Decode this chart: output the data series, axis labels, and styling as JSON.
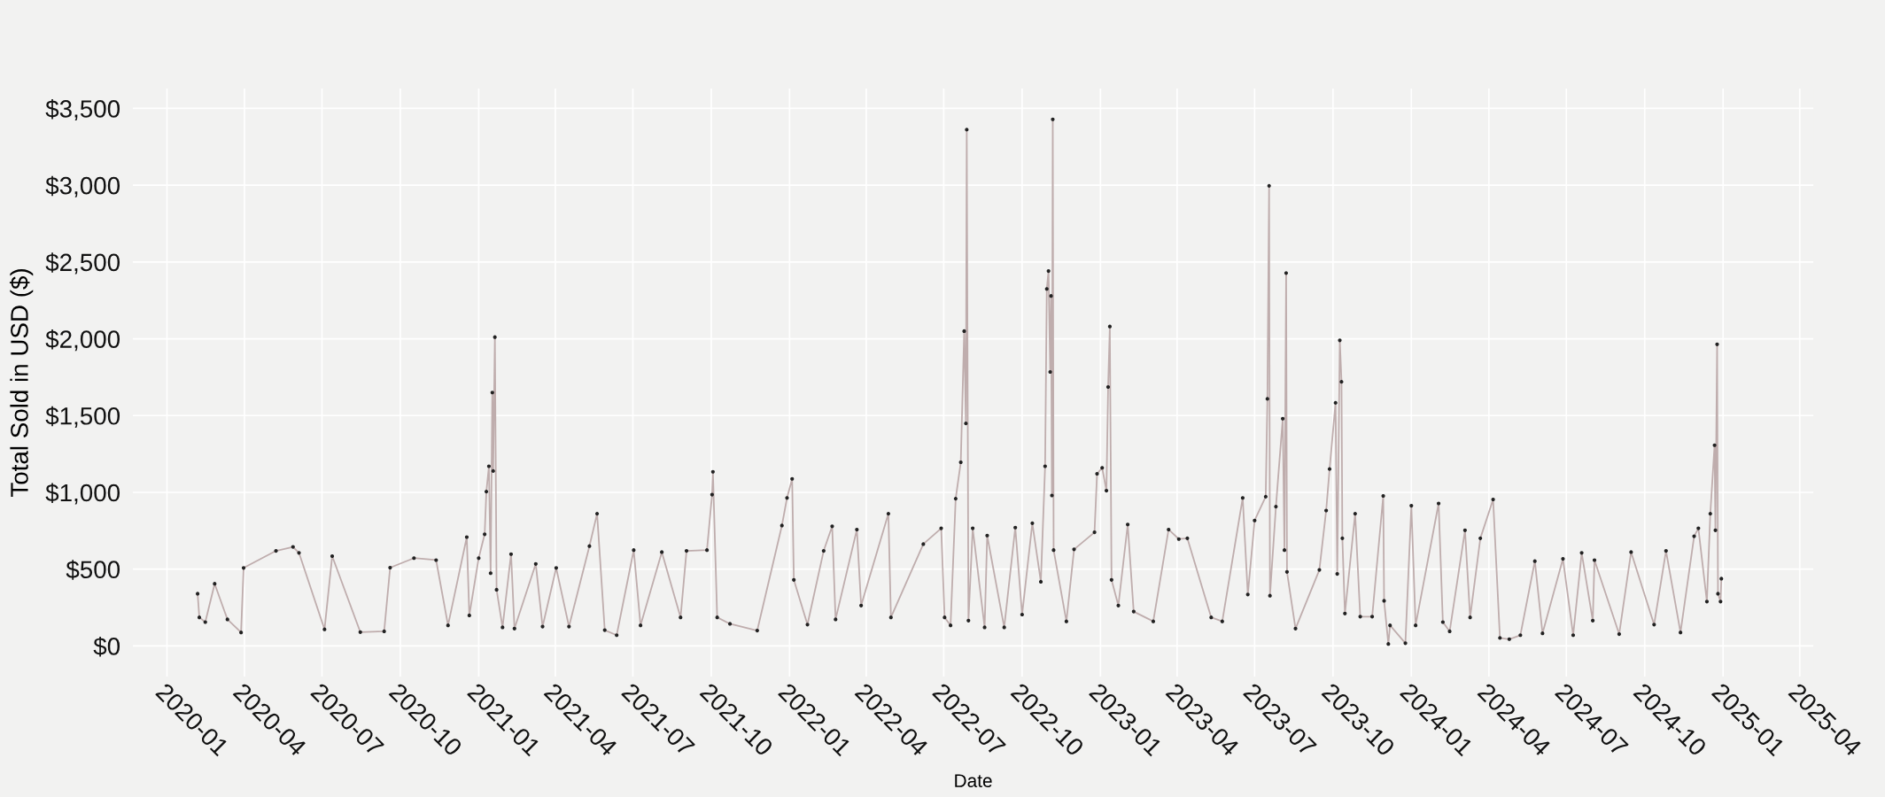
{
  "chart_data": {
    "type": "line",
    "xlabel": "Date",
    "ylabel": "Total Sold in USD ($)",
    "x": [
      "2020-02-06",
      "2020-02-08",
      "2020-02-15",
      "2020-02-26",
      "2020-03-12",
      "2020-03-28",
      "2020-03-31",
      "2020-05-08",
      "2020-05-28",
      "2020-06-04",
      "2020-07-04",
      "2020-07-13",
      "2020-08-15",
      "2020-09-12",
      "2020-09-19",
      "2020-10-17",
      "2020-11-12",
      "2020-11-26",
      "2020-12-18",
      "2020-12-21",
      "2021-01-01",
      "2021-01-08",
      "2021-01-10",
      "2021-01-13",
      "2021-01-15",
      "2021-01-17",
      "2021-01-18",
      "2021-01-20",
      "2021-01-22",
      "2021-01-29",
      "2021-02-08",
      "2021-02-12",
      "2021-03-09",
      "2021-03-17",
      "2021-04-02",
      "2021-04-17",
      "2021-05-11",
      "2021-05-20",
      "2021-05-29",
      "2021-06-12",
      "2021-07-02",
      "2021-07-10",
      "2021-08-04",
      "2021-08-26",
      "2021-09-02",
      "2021-09-26",
      "2021-10-02",
      "2021-10-03",
      "2021-10-08",
      "2021-10-23",
      "2021-11-24",
      "2021-12-23",
      "2021-12-29",
      "2022-01-04",
      "2022-01-06",
      "2022-01-22",
      "2022-02-10",
      "2022-02-20",
      "2022-02-24",
      "2022-03-21",
      "2022-03-26",
      "2022-04-27",
      "2022-04-30",
      "2022-06-07",
      "2022-06-28",
      "2022-07-02",
      "2022-07-09",
      "2022-07-15",
      "2022-07-21",
      "2022-07-25",
      "2022-07-27",
      "2022-07-28",
      "2022-07-30",
      "2022-08-04",
      "2022-08-18",
      "2022-08-21",
      "2022-09-10",
      "2022-09-23",
      "2022-10-01",
      "2022-10-13",
      "2022-10-23",
      "2022-10-28",
      "2022-10-30",
      "2022-11-01",
      "2022-11-03",
      "2022-11-04",
      "2022-11-05",
      "2022-11-06",
      "2022-11-07",
      "2022-11-22",
      "2022-12-01",
      "2022-12-25",
      "2022-12-28",
      "2023-01-03",
      "2023-01-08",
      "2023-01-10",
      "2023-01-12",
      "2023-01-14",
      "2023-01-22",
      "2023-02-02",
      "2023-02-09",
      "2023-03-04",
      "2023-03-22",
      "2023-04-03",
      "2023-04-13",
      "2023-05-11",
      "2023-05-24",
      "2023-06-17",
      "2023-06-23",
      "2023-07-01",
      "2023-07-14",
      "2023-07-16",
      "2023-07-18",
      "2023-07-19",
      "2023-07-26",
      "2023-08-03",
      "2023-08-05",
      "2023-08-07",
      "2023-08-08",
      "2023-08-18",
      "2023-09-15",
      "2023-09-23",
      "2023-09-27",
      "2023-10-04",
      "2023-10-06",
      "2023-10-09",
      "2023-10-11",
      "2023-10-12",
      "2023-10-15",
      "2023-10-27",
      "2023-11-02",
      "2023-11-16",
      "2023-11-29",
      "2023-11-30",
      "2023-12-05",
      "2023-12-07",
      "2023-12-25",
      "2024-01-01",
      "2024-01-06",
      "2024-02-02",
      "2024-02-07",
      "2024-02-15",
      "2024-03-04",
      "2024-03-10",
      "2024-03-22",
      "2024-04-06",
      "2024-04-14",
      "2024-04-25",
      "2024-05-08",
      "2024-05-25",
      "2024-06-03",
      "2024-06-27",
      "2024-07-09",
      "2024-07-19",
      "2024-08-01",
      "2024-08-03",
      "2024-09-01",
      "2024-09-15",
      "2024-10-12",
      "2024-10-26",
      "2024-11-12",
      "2024-11-28",
      "2024-12-03",
      "2024-12-13",
      "2024-12-17",
      "2024-12-22",
      "2024-12-23",
      "2024-12-25",
      "2024-12-26",
      "2024-12-29",
      "2024-12-30"
    ],
    "series": [
      {
        "color": "#bfadad",
        "values": [
          340,
          186,
          155,
          405,
          173,
          88,
          508,
          619,
          645,
          606,
          108,
          585,
          90,
          95,
          510,
          572,
          559,
          134,
          709,
          199,
          572,
          727,
          1005,
          1170,
          474,
          1650,
          1139,
          2011,
          366,
          121,
          598,
          113,
          534,
          126,
          508,
          126,
          650,
          861,
          103,
          70,
          624,
          134,
          611,
          186,
          619,
          624,
          985,
          1134,
          186,
          144,
          100,
          784,
          964,
          1088,
          430,
          139,
          619,
          779,
          173,
          758,
          263,
          861,
          186,
          663,
          766,
          186,
          134,
          959,
          1196,
          2050,
          1449,
          3362,
          165,
          766,
          121,
          719,
          121,
          771,
          204,
          799,
          418,
          1170,
          2325,
          2441,
          1784,
          2279,
          980,
          3429,
          624,
          160,
          629,
          740,
          1121,
          1160,
          1011,
          1686,
          2080,
          430,
          263,
          791,
          224,
          160,
          758,
          696,
          701,
          186,
          160,
          964,
          335,
          817,
          972,
          1609,
          2996,
          327,
          907,
          1480,
          624,
          2428,
          482,
          113,
          495,
          882,
          1152,
          1583,
          469,
          1990,
          1720,
          701,
          211,
          861,
          191,
          191,
          977,
          294,
          13,
          134,
          18,
          913,
          134,
          928,
          155,
          95,
          753,
          186,
          701,
          954,
          52,
          44,
          70,
          552,
          82,
          567,
          70,
          606,
          165,
          559,
          77,
          611,
          139,
          619,
          88,
          714,
          766,
          289,
          861,
          1307,
          753,
          1964,
          340,
          289,
          438
        ]
      }
    ],
    "xlim": [
      "2019-11-22",
      "2025-04-17"
    ],
    "ylim": [
      -200,
      3630
    ],
    "xticks": [
      "2020-01",
      "2020-04",
      "2020-07",
      "2020-10",
      "2021-01",
      "2021-04",
      "2021-07",
      "2021-10",
      "2022-01",
      "2022-04",
      "2022-07",
      "2022-10",
      "2023-01",
      "2023-04",
      "2023-07",
      "2023-10",
      "2024-01",
      "2024-04",
      "2024-07",
      "2024-10",
      "2025-01",
      "2025-04"
    ],
    "yticks": [
      {
        "value": 0,
        "label": "$0"
      },
      {
        "value": 500,
        "label": "$500"
      },
      {
        "value": 1000,
        "label": "$1,000"
      },
      {
        "value": 1500,
        "label": "$1,500"
      },
      {
        "value": 2000,
        "label": "$2,000"
      },
      {
        "value": 2500,
        "label": "$2,500"
      },
      {
        "value": 3000,
        "label": "$3,000"
      },
      {
        "value": 3500,
        "label": "$3,500"
      }
    ],
    "grid": true,
    "marker": "circle",
    "line_style": "solid"
  }
}
